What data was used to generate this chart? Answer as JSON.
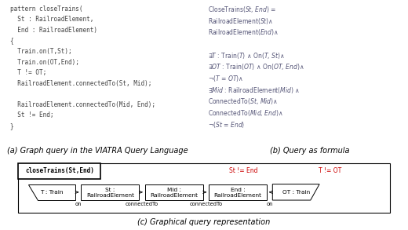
{
  "fig_width": 5.2,
  "fig_height": 2.93,
  "dpi": 100,
  "panel_a_code": [
    "pattern closeTrains(",
    "  St : RailroadElement,",
    "  End : RailroadElement)",
    "{",
    "  Train.on(T,St);",
    "  Train.on(OT,End);",
    "  T != OT;",
    "  RailroadElement.connectedTo(St, Mid);",
    "",
    "  RailroadElement.connectedTo(Mid, End);",
    "  St != End;",
    "}"
  ],
  "formula_lines": [
    "CloseTrains($St$, $End$) =",
    "RailroadElement($St$)$\\wedge$",
    "RailroadElement($End$)$\\wedge$",
    "",
    "$\\exists T$ : Train($T$) $\\wedge$ On($T$, $St$)$\\wedge$",
    "$\\exists OT$ : Train($OT$) $\\wedge$ On($OT$, $End$)$\\wedge$",
    "$\\neg$($T$ = $OT$)$\\wedge$",
    "$\\exists Mid$ : RailroadElement($Mid$) $\\wedge$",
    "ConnectedTo($St$, $Mid$)$\\wedge$",
    "ConnectedTo($Mid$, $End$)$\\wedge$",
    "$\\neg$($St$ = $End$)"
  ],
  "caption_a": "(a) Graph query in the VIATRA Query Language",
  "caption_b": "(b) Query as formula",
  "caption_c": "(c) Graphical query representation",
  "code_color": "#444444",
  "formula_color": "#555577",
  "red_color": "#cc0000",
  "bg_gray": "#e8e8e8"
}
